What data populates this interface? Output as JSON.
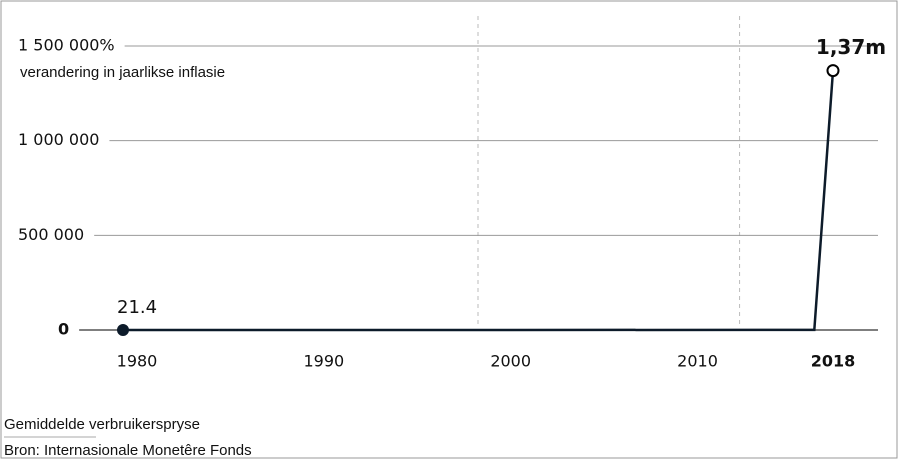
{
  "chart_data": {
    "type": "line",
    "title": "verandering in jaarlikse inflasie",
    "notes": [
      "Gemiddelde verbruikerspryse",
      "Bron: Internasionale Monetêre Fonds"
    ],
    "x": [
      1980,
      2017,
      2018
    ],
    "series": [
      {
        "name": "Inflasie",
        "color": "#0d1b2a",
        "values": [
          21.4,
          438,
          1370000
        ],
        "value_labels": [
          "21.4",
          null,
          "1,37m"
        ]
      }
    ],
    "xlim": [
      1980,
      2018
    ],
    "xticks": [
      1980,
      1990,
      2000,
      2010,
      2018
    ],
    "ylim": [
      0,
      1500000
    ],
    "yticks": [
      0,
      {
        "value": 500000,
        "label": "500 000"
      },
      {
        "value": 1000000,
        "label": "1 000 000"
      },
      {
        "value": 1500000,
        "label": "1 500 000%"
      }
    ],
    "reference_lines": [
      1999,
      2013
    ],
    "grid": true
  }
}
